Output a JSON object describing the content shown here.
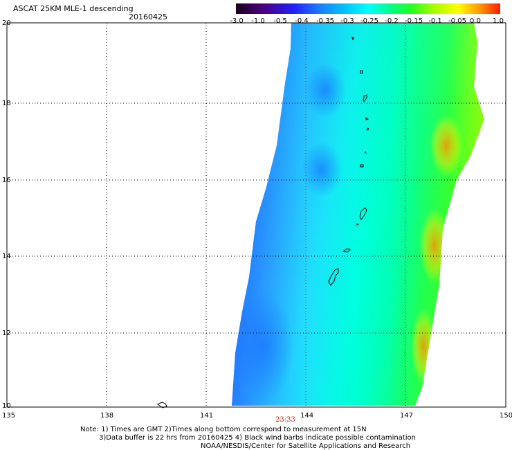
{
  "header": {
    "title": "ASCAT 25KM MLE-1 descending",
    "date": "20160425"
  },
  "colorbar": {
    "labels": [
      "-3.0",
      "-1.0",
      "-0.5",
      "-0.4",
      "-0.35",
      "-0.3",
      "-0.25",
      "-0.2",
      "-0.15",
      "-0.1",
      "-0.05",
      "0.0",
      "1.0"
    ],
    "colors": [
      "#2a002a",
      "#4a0080",
      "#2020ff",
      "#1a7fff",
      "#00c0ff",
      "#00ffff",
      "#00ff80",
      "#20ff20",
      "#a0ff00",
      "#ffff00",
      "#ffa000",
      "#ff2000"
    ]
  },
  "axes": {
    "x_ticks": [
      "135",
      "138",
      "141",
      "144",
      "147",
      "150"
    ],
    "y_ticks": [
      "10",
      "12",
      "14",
      "16",
      "18",
      "20"
    ],
    "x_range": [
      135,
      150
    ],
    "y_range": [
      10,
      20
    ]
  },
  "swath": {
    "time_label": "23:33",
    "time_color": "#cc2200"
  },
  "notes": {
    "line1": "Note: 1) Times are GMT 2)Times along bottom correspond to measurement at 15N",
    "line2": "3)Data buffer is 22 hrs from 20160425 4) Black wind barbs indicate possible contamination",
    "line3": "NOAA/NESDIS/Center for Satellite Applications and Research"
  }
}
